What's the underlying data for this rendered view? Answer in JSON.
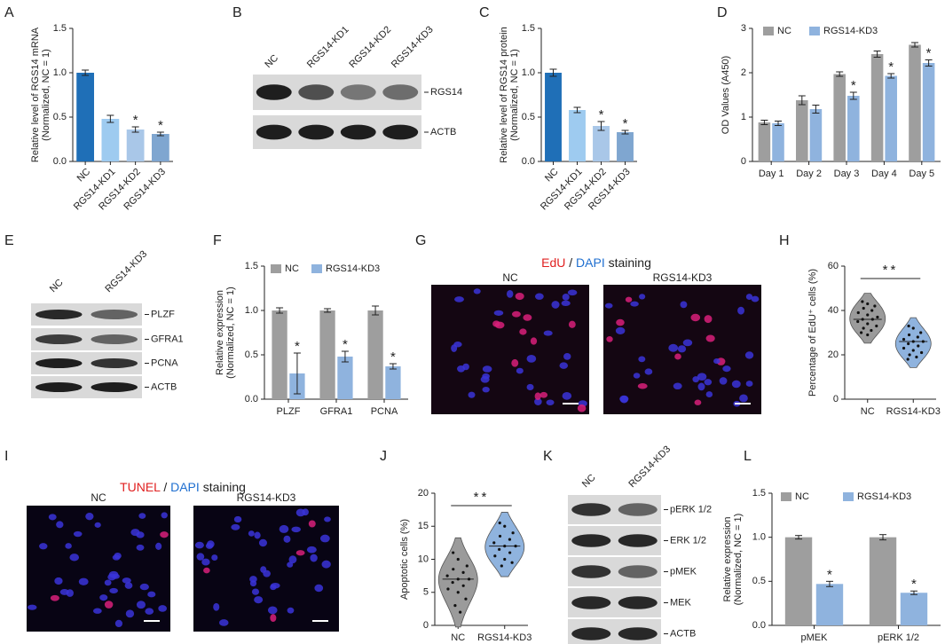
{
  "chart_data": [
    {
      "panel": "A",
      "type": "bar",
      "ylabel": [
        "Relative level of RGS14 mRNA",
        "(Normalized, NC = 1)"
      ],
      "categories": [
        "NC",
        "RGS14-KD1",
        "RGS14-KD2",
        "RGS14-KD3"
      ],
      "values": [
        1.0,
        0.48,
        0.36,
        0.31
      ],
      "errors": [
        0.03,
        0.04,
        0.03,
        0.02
      ],
      "colors": [
        "#1f6fb7",
        "#9ecbf0",
        "#a9c7e8",
        "#7fa6d0"
      ],
      "significance": [
        null,
        null,
        "*",
        "*"
      ],
      "ylim": [
        0,
        1.5
      ],
      "yticks": [
        {
          "value": 0,
          "label": "0.0"
        },
        {
          "value": 0.5,
          "label": "0.5"
        },
        {
          "value": 1,
          "label": "1.0"
        },
        {
          "value": 1.5,
          "label": "1.5"
        }
      ]
    },
    {
      "panel": "C",
      "type": "bar",
      "ylabel": [
        "Relative level of RGS14 protein",
        "(Normalized, NC = 1)"
      ],
      "categories": [
        "NC",
        "RGS14-KD1",
        "RGS14-KD2",
        "RGS14-KD3"
      ],
      "values": [
        1.0,
        0.58,
        0.4,
        0.33
      ],
      "errors": [
        0.04,
        0.03,
        0.05,
        0.02
      ],
      "colors": [
        "#1f6fb7",
        "#9ecbf0",
        "#a9c7e8",
        "#7fa6d0"
      ],
      "significance": [
        null,
        null,
        "*",
        "*"
      ],
      "ylim": [
        0,
        1.5
      ],
      "yticks": [
        {
          "value": 0,
          "label": "0.0"
        },
        {
          "value": 0.5,
          "label": "0.5"
        },
        {
          "value": 1,
          "label": "1.0"
        },
        {
          "value": 1.5,
          "label": "1.5"
        }
      ]
    },
    {
      "panel": "D",
      "type": "grouped_bar",
      "ylabel": [
        "OD Values (A450)"
      ],
      "categories": [
        "Day 1",
        "Day 2",
        "Day 3",
        "Day 4",
        "Day 5"
      ],
      "series": [
        {
          "name": "NC",
          "color": "#9e9e9e",
          "values": [
            0.88,
            1.38,
            1.97,
            2.42,
            2.63
          ],
          "errors": [
            0.05,
            0.1,
            0.05,
            0.07,
            0.05
          ],
          "significance": [
            null,
            null,
            null,
            null,
            null
          ]
        },
        {
          "name": "RGS14-KD3",
          "color": "#8fb3de",
          "values": [
            0.86,
            1.18,
            1.48,
            1.93,
            2.22
          ],
          "errors": [
            0.05,
            0.09,
            0.08,
            0.05,
            0.07
          ],
          "significance": [
            null,
            null,
            "*",
            "*",
            "*"
          ]
        }
      ],
      "ylim": [
        0,
        3
      ],
      "yticks": [
        0,
        1,
        2,
        3
      ]
    },
    {
      "panel": "F",
      "type": "grouped_bar",
      "ylabel": [
        "Relative expression",
        "(Normalized, NC = 1)"
      ],
      "categories": [
        "PLZF",
        "GFRA1",
        "PCNA"
      ],
      "series": [
        {
          "name": "NC",
          "color": "#9e9e9e",
          "values": [
            1.0,
            1.0,
            1.0
          ],
          "errors": [
            0.03,
            0.02,
            0.05
          ],
          "significance": [
            null,
            null,
            null
          ]
        },
        {
          "name": "RGS14-KD3",
          "color": "#8fb3de",
          "values": [
            0.29,
            0.48,
            0.37
          ],
          "errors": [
            0.23,
            0.06,
            0.03
          ],
          "significance": [
            "*",
            "*",
            "*"
          ]
        }
      ],
      "ylim": [
        0,
        1.5
      ],
      "yticks": [
        {
          "value": 0,
          "label": "0.0"
        },
        {
          "value": 0.5,
          "label": "0.5"
        },
        {
          "value": 1,
          "label": "1.0"
        },
        {
          "value": 1.5,
          "label": "1.5"
        }
      ]
    },
    {
      "panel": "H",
      "type": "violin",
      "ylabel": [
        "Percentage of EdU⁺ cells (%)"
      ],
      "categories": [
        "NC",
        "RGS14-KD3"
      ],
      "colors": [
        "#9b9b9b",
        "#8fb3de"
      ],
      "values": [
        [
          44,
          43,
          42,
          41,
          40,
          39,
          38,
          37,
          36,
          36,
          35,
          34,
          33,
          32,
          31,
          30,
          29
        ],
        [
          33,
          32,
          30,
          29,
          28,
          27,
          26,
          26,
          25,
          24,
          23,
          22,
          21,
          20,
          19,
          18
        ]
      ],
      "comparison": "**",
      "ylim": [
        0,
        60
      ],
      "yticks": [
        0,
        20,
        40,
        60
      ]
    },
    {
      "panel": "J",
      "type": "violin",
      "ylabel": [
        "Apoptotic cells (%)"
      ],
      "categories": [
        "NC",
        "RGS14-KD3"
      ],
      "colors": [
        "#9b9b9b",
        "#8fb3de"
      ],
      "values": [
        [
          11,
          10,
          9,
          8.5,
          8,
          7.5,
          7,
          7,
          6.5,
          6,
          5.5,
          5,
          4,
          3,
          2
        ],
        [
          15.5,
          15,
          14,
          13.5,
          13,
          12.5,
          12,
          12,
          11.5,
          11,
          10.5,
          10,
          9.5,
          9
        ]
      ],
      "comparison": "**",
      "ylim": [
        0,
        20
      ],
      "yticks": [
        0,
        5,
        10,
        15,
        20
      ]
    },
    {
      "panel": "L",
      "type": "grouped_bar",
      "ylabel": [
        "Relative expression",
        "(Normalized, NC = 1)"
      ],
      "categories": [
        "pMEK",
        "pERK 1/2"
      ],
      "series": [
        {
          "name": "NC",
          "color": "#9e9e9e",
          "values": [
            1.0,
            1.0
          ],
          "errors": [
            0.02,
            0.03
          ],
          "significance": [
            null,
            null
          ]
        },
        {
          "name": "RGS14-KD3",
          "color": "#8fb3de",
          "values": [
            0.47,
            0.37
          ],
          "errors": [
            0.03,
            0.02
          ],
          "significance": [
            "*",
            "*"
          ]
        }
      ],
      "ylim": [
        0,
        1.5
      ],
      "yticks": [
        {
          "value": 0,
          "label": "0.0"
        },
        {
          "value": 0.5,
          "label": "0.5"
        },
        {
          "value": 1,
          "label": "1.0"
        },
        {
          "value": 1.5,
          "label": "1.5"
        }
      ]
    }
  ],
  "blots": [
    {
      "panel": "B",
      "lanes": [
        "NC",
        "RGS14-KD1",
        "RGS14-KD2",
        "RGS14-KD3"
      ],
      "bands": [
        "RGS14",
        "ACTB"
      ]
    },
    {
      "panel": "E",
      "lanes": [
        "NC",
        "RGS14-KD3"
      ],
      "bands": [
        "PLZF",
        "GFRA1",
        "PCNA",
        "ACTB"
      ]
    },
    {
      "panel": "K",
      "lanes": [
        "NC",
        "RGS14-KD3"
      ],
      "bands": [
        "pERK 1/2",
        "ERK 1/2",
        "pMEK",
        "MEK",
        "ACTB"
      ]
    }
  ],
  "micrographs": [
    {
      "panel": "G",
      "title": [
        "EdU",
        "/",
        "DAPI",
        "staining"
      ],
      "labels": [
        "NC",
        "RGS14-KD3"
      ]
    },
    {
      "panel": "I",
      "title": [
        "TUNEL",
        "/",
        "DAPI",
        "staining"
      ],
      "labels": [
        "NC",
        "RGS14-KD3"
      ]
    }
  ]
}
